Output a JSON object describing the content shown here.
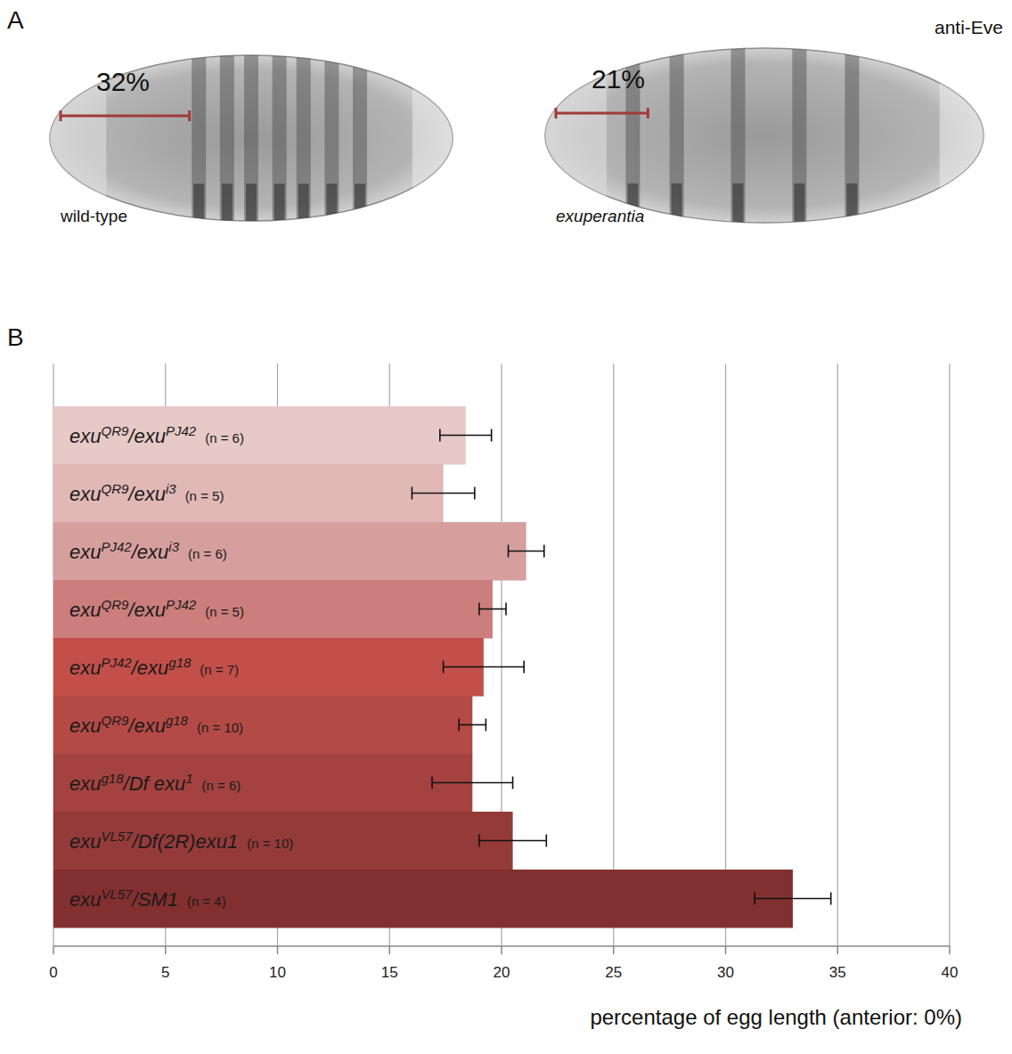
{
  "panel_a": {
    "letter": "A",
    "stain": "anti-Eve",
    "embryos": [
      {
        "genotype": "wild-type",
        "anterior_extent": 32,
        "anterior_extent_label": "32%"
      },
      {
        "genotype": "exuperantia",
        "anterior_extent": 21,
        "anterior_extent_label": "21%"
      }
    ]
  },
  "panel_b": {
    "letter": "B"
  },
  "chart_data": {
    "type": "bar",
    "orientation": "horizontal",
    "categories": [
      "exuQR9/exuPJ42",
      "exuQR9/exui3",
      "exuPJ42/exui3",
      "exuQR9/exuPJ42",
      "exuPJ42/exug18",
      "exuQR9/exug18",
      "exug18/Df exu1",
      "exuVL57/Df(2R)exu1",
      "exuVL57/SM1"
    ],
    "n_labels": [
      "(n = 6)",
      "(n = 5)",
      "(n = 6)",
      "(n = 5)",
      "(n = 7)",
      "(n = 10)",
      "(n = 6)",
      "(n = 10)",
      "(n = 4)"
    ],
    "values": [
      18.4,
      17.4,
      21.1,
      19.6,
      19.2,
      18.7,
      18.7,
      20.5,
      33.0
    ],
    "errors": [
      1.15,
      1.4,
      0.8,
      0.6,
      1.8,
      0.6,
      1.8,
      1.5,
      1.7
    ],
    "colors": [
      "#e7c9c7",
      "#e1b8b6",
      "#d69f9d",
      "#cb7e7c",
      "#c24f4a",
      "#b44a46",
      "#a44240",
      "#943a39",
      "#82302f"
    ],
    "xlabel": "percentage of egg length (anterior: 0%)",
    "xlim": [
      0,
      40
    ],
    "xticks": [
      0,
      5,
      10,
      15,
      20,
      25,
      30,
      35,
      40
    ],
    "grid": true
  }
}
